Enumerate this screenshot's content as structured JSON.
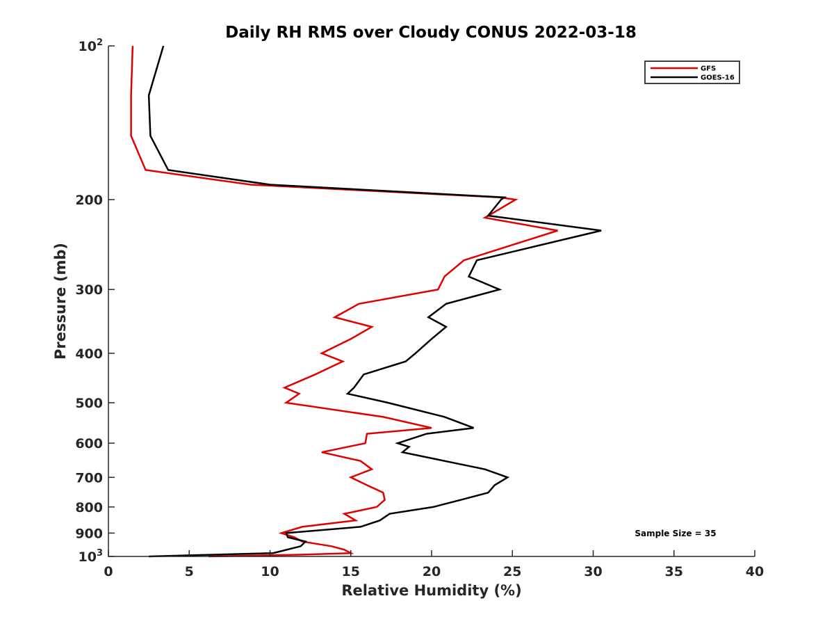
{
  "chart_data": {
    "type": "line",
    "title": "Daily RH RMS over Cloudy CONUS 2022-03-18",
    "xlabel": "Relative Humidity (%)",
    "ylabel": "Pressure (mb)",
    "xlim": [
      0,
      40
    ],
    "ylim": [
      100,
      1000
    ],
    "y_scale": "log",
    "y_reversed": true,
    "grid": false,
    "legend_position": "top-right",
    "x_ticks": [
      0,
      5,
      10,
      15,
      20,
      25,
      30,
      35,
      40
    ],
    "x_tick_labels": [
      "0",
      "5",
      "10",
      "15",
      "20",
      "25",
      "30",
      "35",
      "40"
    ],
    "y_ticks": [
      {
        "value": 100,
        "label": "10",
        "sup": "2"
      },
      {
        "value": 200,
        "label": "200",
        "sup": ""
      },
      {
        "value": 300,
        "label": "300",
        "sup": ""
      },
      {
        "value": 400,
        "label": "400",
        "sup": ""
      },
      {
        "value": 500,
        "label": "500",
        "sup": ""
      },
      {
        "value": 600,
        "label": "600",
        "sup": ""
      },
      {
        "value": 700,
        "label": "700",
        "sup": ""
      },
      {
        "value": 800,
        "label": "800",
        "sup": ""
      },
      {
        "value": 900,
        "label": "900",
        "sup": ""
      },
      {
        "value": 1000,
        "label": "10",
        "sup": "3"
      }
    ],
    "annotation": "Sample Size = 35",
    "series": [
      {
        "name": "GFS",
        "color": "#e00000",
        "points": [
          [
            1.5,
            100
          ],
          [
            1.4,
            125
          ],
          [
            1.4,
            150
          ],
          [
            2.3,
            175
          ],
          [
            8.8,
            187
          ],
          [
            24.2,
            198
          ],
          [
            25.2,
            200
          ],
          [
            23.3,
            217
          ],
          [
            27.8,
            230
          ],
          [
            22.0,
            263
          ],
          [
            20.8,
            283
          ],
          [
            20.4,
            300
          ],
          [
            15.5,
            320
          ],
          [
            14.0,
            340
          ],
          [
            16.3,
            355
          ],
          [
            15.0,
            375
          ],
          [
            13.2,
            400
          ],
          [
            14.5,
            415
          ],
          [
            12.8,
            440
          ],
          [
            10.9,
            467
          ],
          [
            11.8,
            480
          ],
          [
            11.0,
            500
          ],
          [
            17.0,
            533
          ],
          [
            20.0,
            560
          ],
          [
            16.0,
            575
          ],
          [
            15.9,
            600
          ],
          [
            13.2,
            625
          ],
          [
            15.6,
            650
          ],
          [
            16.3,
            675
          ],
          [
            15.0,
            700
          ],
          [
            16.0,
            725
          ],
          [
            17.0,
            750
          ],
          [
            17.1,
            775
          ],
          [
            16.6,
            800
          ],
          [
            14.6,
            825
          ],
          [
            15.3,
            850
          ],
          [
            12.0,
            875
          ],
          [
            10.7,
            900
          ],
          [
            11.5,
            917
          ],
          [
            12.0,
            935
          ],
          [
            13.8,
            955
          ],
          [
            14.6,
            970
          ],
          [
            15.0,
            985
          ],
          [
            12.0,
            992
          ],
          [
            6.2,
            1000
          ]
        ]
      },
      {
        "name": "GOES-16",
        "color": "#000000",
        "points": [
          [
            3.4,
            100
          ],
          [
            2.5,
            125
          ],
          [
            2.6,
            150
          ],
          [
            3.7,
            175
          ],
          [
            10.0,
            187
          ],
          [
            24.5,
            198
          ],
          [
            24.3,
            200
          ],
          [
            23.5,
            215
          ],
          [
            30.5,
            230
          ],
          [
            22.8,
            263
          ],
          [
            22.3,
            283
          ],
          [
            24.2,
            300
          ],
          [
            20.9,
            320
          ],
          [
            19.8,
            340
          ],
          [
            20.9,
            355
          ],
          [
            20.0,
            375
          ],
          [
            19.0,
            400
          ],
          [
            18.4,
            415
          ],
          [
            15.8,
            440
          ],
          [
            15.2,
            467
          ],
          [
            14.8,
            480
          ],
          [
            17.3,
            500
          ],
          [
            20.8,
            533
          ],
          [
            22.6,
            560
          ],
          [
            19.7,
            575
          ],
          [
            17.9,
            600
          ],
          [
            18.6,
            610
          ],
          [
            18.2,
            625
          ],
          [
            23.3,
            675
          ],
          [
            24.7,
            700
          ],
          [
            23.9,
            725
          ],
          [
            23.5,
            750
          ],
          [
            21.8,
            775
          ],
          [
            20.1,
            800
          ],
          [
            17.4,
            825
          ],
          [
            16.8,
            850
          ],
          [
            15.6,
            875
          ],
          [
            11.0,
            900
          ],
          [
            11.1,
            917
          ],
          [
            12.2,
            935
          ],
          [
            11.9,
            955
          ],
          [
            10.2,
            985
          ],
          [
            2.5,
            1000
          ]
        ]
      }
    ]
  }
}
